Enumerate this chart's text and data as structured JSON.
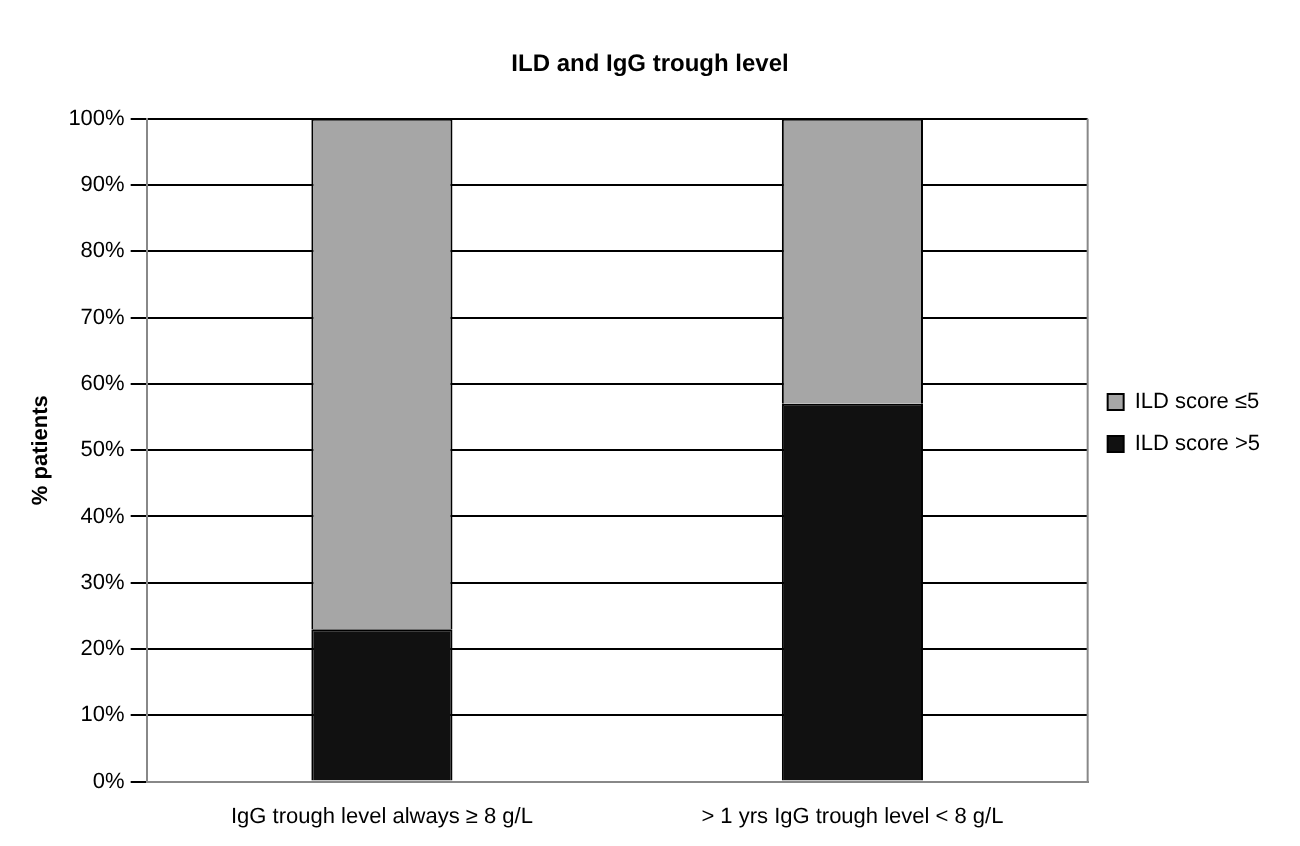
{
  "chart_data": {
    "type": "bar",
    "title": "ILD and IgG trough level",
    "ylabel": "% patients",
    "categories": [
      "IgG trough level always ≥ 8 g/L",
      "> 1 yrs IgG trough level < 8 g/L"
    ],
    "stacked": true,
    "series": [
      {
        "name": "ILD score >5",
        "color": "#111111",
        "values": [
          23,
          57
        ]
      },
      {
        "name": "ILD score ≤5",
        "color": "#a6a6a6",
        "values": [
          77,
          43
        ]
      }
    ],
    "ylim": [
      0,
      100
    ],
    "yticks": [
      {
        "value": 0,
        "label": "0%"
      },
      {
        "value": 10,
        "label": "10%"
      },
      {
        "value": 20,
        "label": "20%"
      },
      {
        "value": 30,
        "label": "30%"
      },
      {
        "value": 40,
        "label": "40%"
      },
      {
        "value": 50,
        "label": "50%"
      },
      {
        "value": 60,
        "label": "60%"
      },
      {
        "value": 70,
        "label": "70%"
      },
      {
        "value": 80,
        "label": "80%"
      },
      {
        "value": 90,
        "label": "90%"
      },
      {
        "value": 100,
        "label": "100%"
      }
    ],
    "grid": "y",
    "legend": "right"
  }
}
